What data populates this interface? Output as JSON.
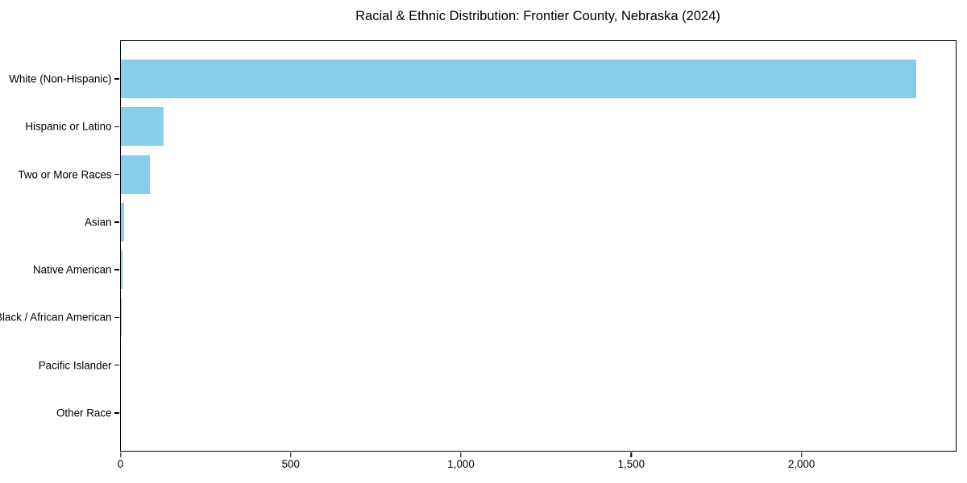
{
  "chart_data": {
    "type": "bar",
    "orientation": "horizontal",
    "title": "Racial & Ethnic Distribution: Frontier County, Nebraska (2024)",
    "categories": [
      "White (Non-Hispanic)",
      "Hispanic or Latino",
      "Two or More Races",
      "Asian",
      "Native American",
      "Black / African American",
      "Pacific Islander",
      "Other Race"
    ],
    "values": [
      2336,
      126,
      86,
      10,
      6,
      4,
      0,
      0
    ],
    "xlabel": "",
    "ylabel": "",
    "xlim": [
      0,
      2453
    ],
    "xticks": [
      0,
      500,
      1000,
      1500,
      2000
    ],
    "xtick_labels": [
      "0",
      "500",
      "1,000",
      "1,500",
      "2,000"
    ],
    "bar_color": "#87CEEB",
    "spine_color": "#000000",
    "background": "#ffffff",
    "grid": false,
    "legend": null
  }
}
